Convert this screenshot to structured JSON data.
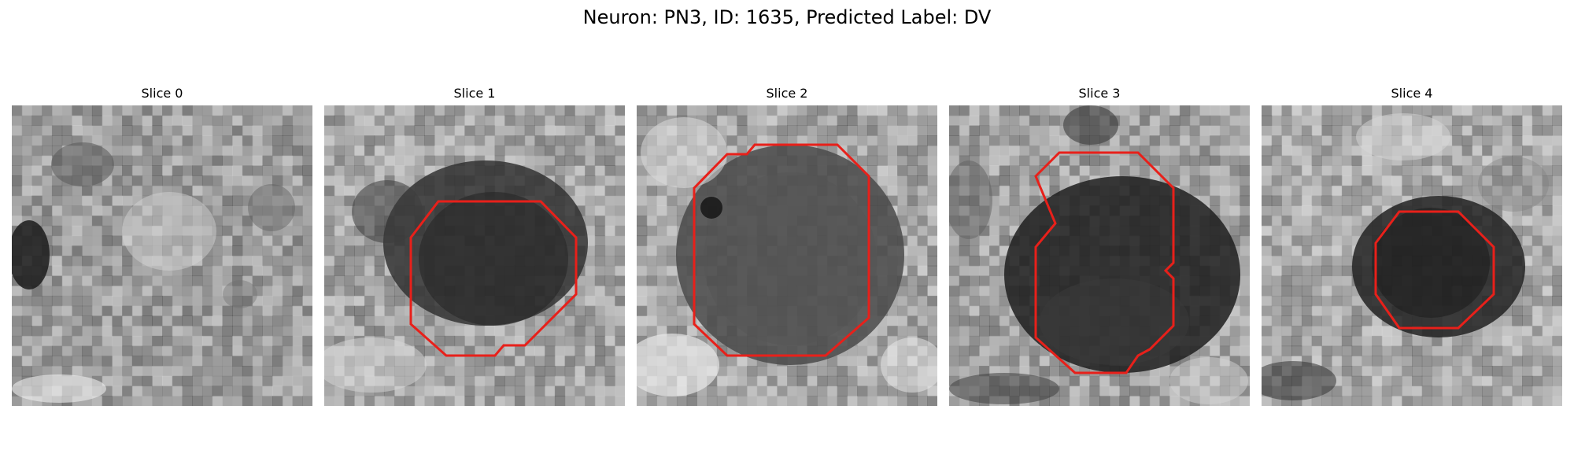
{
  "figure": {
    "title": "Neuron: PN3, ID: 1635, Predicted Label: DV"
  },
  "colors": {
    "contour": "#e8201a"
  },
  "panels": [
    {
      "title": "Slice 0",
      "has_contour": false
    },
    {
      "title": "Slice 1",
      "has_contour": true
    },
    {
      "title": "Slice 2",
      "has_contour": true
    },
    {
      "title": "Slice 3",
      "has_contour": true
    },
    {
      "title": "Slice 4",
      "has_contour": true
    }
  ]
}
